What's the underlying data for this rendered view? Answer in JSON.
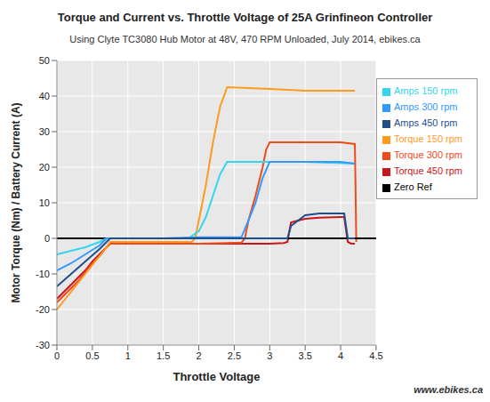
{
  "chart_data": {
    "type": "line",
    "title": "Torque and Current vs. Throttle Voltage of 25A Grinfineon Controller",
    "subtitle": "Using Clyte TC3080 Hub Motor at 48V,  470 RPM Unloaded,  July 2014,  ebikes.ca",
    "x_label": "Throttle Voltage",
    "y_label": "Motor Torque (Nm) / Battery Current (A)",
    "annotations": [
      "www.ebikes.ca"
    ],
    "xlim": [
      0,
      4.5
    ],
    "xticks": [
      0,
      0.5,
      1,
      1.5,
      2,
      2.5,
      3,
      3.5,
      4,
      4.5
    ],
    "ylim": [
      -30,
      50
    ],
    "yticks": [
      -30,
      -20,
      -10,
      0,
      10,
      20,
      30,
      40,
      50
    ],
    "grid": true,
    "legend": "right",
    "series": [
      {
        "name": "Torque 450 rpm",
        "color": "#c8161d",
        "x": [
          0,
          0.1,
          0.2,
          0.3,
          0.4,
          0.5,
          0.6,
          0.7,
          0.75,
          1,
          1.5,
          2,
          2.5,
          3,
          3.2,
          3.25,
          3.3,
          3.4,
          3.5,
          3.7,
          4.0,
          4.05,
          4.1,
          4.15,
          4.2
        ],
        "values": [
          -17,
          -15,
          -13,
          -11,
          -9,
          -6.5,
          -4.5,
          -2.5,
          -1.5,
          -1.5,
          -1.5,
          -1.5,
          -1.5,
          -1.5,
          -1.3,
          -1,
          4.5,
          5,
          5.5,
          5.8,
          6,
          6,
          -1,
          -1.5,
          -1.5
        ]
      },
      {
        "name": "Torque 300 rpm",
        "color": "#ee4a1a",
        "x": [
          0,
          0.1,
          0.2,
          0.3,
          0.4,
          0.5,
          0.6,
          0.7,
          0.75,
          1,
          1.5,
          2,
          2.6,
          2.65,
          2.7,
          2.8,
          2.9,
          2.95,
          3.0,
          3.5,
          4.0,
          4.2,
          4.21,
          4.22
        ],
        "values": [
          -18,
          -16,
          -14,
          -12,
          -9.5,
          -7,
          -5,
          -2.5,
          -1.5,
          -1.5,
          -1.5,
          -1.5,
          -1.2,
          0,
          5,
          12,
          20,
          25,
          27,
          27,
          27,
          26.5,
          14,
          -1
        ]
      },
      {
        "name": "Torque 150 rpm",
        "color": "#ff9a1f",
        "x": [
          0,
          0.1,
          0.2,
          0.3,
          0.4,
          0.5,
          0.6,
          0.7,
          0.75,
          1,
          1.5,
          1.9,
          1.95,
          2.0,
          2.1,
          2.2,
          2.3,
          2.4,
          3.0,
          3.5,
          4.2
        ],
        "values": [
          -20,
          -17.5,
          -15,
          -12.5,
          -10,
          -7.5,
          -5,
          -2.5,
          -1,
          -1,
          -1,
          -1,
          0,
          5,
          15,
          27,
          37,
          42.5,
          42,
          41.5,
          41.5
        ]
      },
      {
        "name": "Zero Ref",
        "color": "#000000",
        "x": [
          0,
          4.5
        ],
        "values": [
          0,
          0
        ]
      },
      {
        "name": "Amps 150 rpm",
        "color": "#33d6ee",
        "x": [
          0,
          0.2,
          0.4,
          0.6,
          0.7,
          1,
          1.5,
          1.85,
          2.0,
          2.1,
          2.2,
          2.3,
          2.4,
          3.0,
          3.5,
          4.2
        ],
        "values": [
          -4.5,
          -3.5,
          -2.5,
          -1,
          0,
          0,
          0,
          0,
          2,
          6,
          12,
          18,
          21.5,
          21.5,
          21.5,
          21
        ]
      },
      {
        "name": "Amps 300 rpm",
        "color": "#3399ff",
        "x": [
          0,
          0.2,
          0.4,
          0.6,
          0.7,
          1,
          1.5,
          2,
          2.6,
          2.7,
          2.8,
          2.9,
          3.0,
          3.5,
          4.0,
          4.2
        ],
        "values": [
          -9,
          -7,
          -4.5,
          -2,
          0,
          0,
          0,
          0.3,
          0.3,
          5,
          10,
          17,
          21.5,
          21.5,
          21.5,
          21
        ]
      },
      {
        "name": "Amps 450 rpm",
        "color": "#1f4e8c",
        "x": [
          0,
          0.2,
          0.4,
          0.6,
          0.75,
          1,
          1.5,
          2,
          2.5,
          3.25,
          3.3,
          3.4,
          3.5,
          3.7,
          4.05,
          4.1,
          4.2
        ],
        "values": [
          -13.5,
          -10,
          -6.5,
          -3,
          0,
          0,
          0,
          0,
          0,
          0,
          3.5,
          5,
          6.5,
          7,
          7,
          0,
          0
        ]
      }
    ]
  }
}
